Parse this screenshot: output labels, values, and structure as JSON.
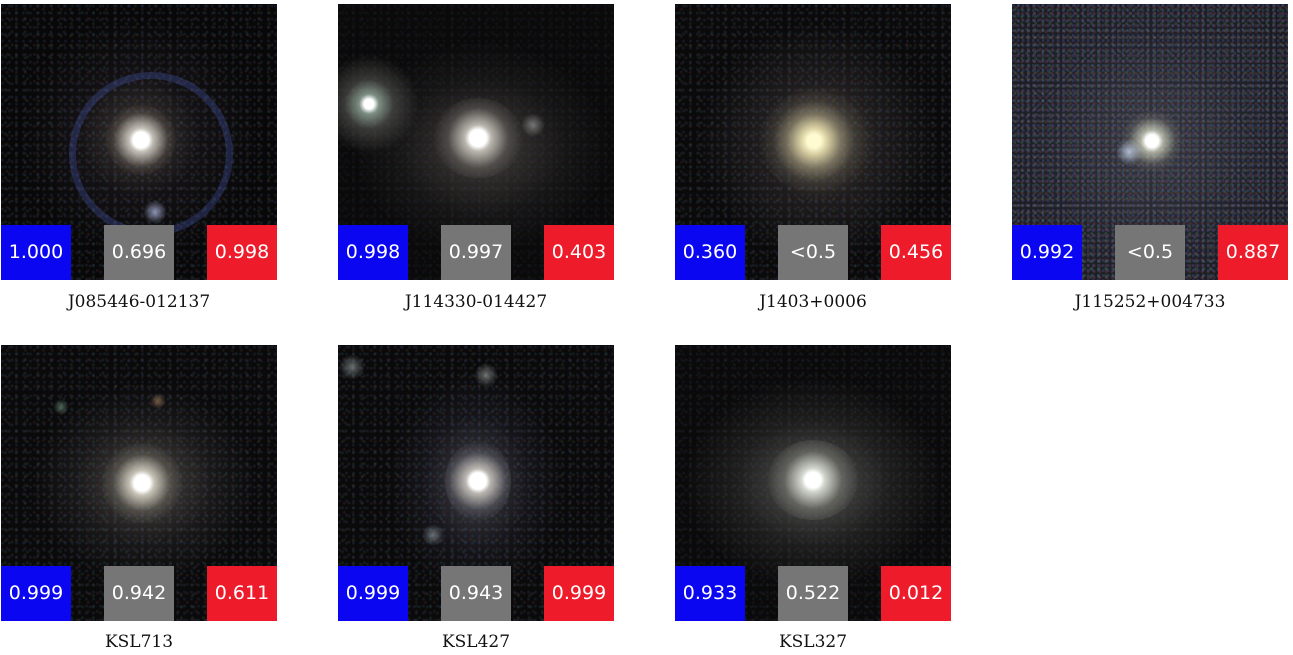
{
  "panels": [
    {
      "name": "J085446-012137",
      "scores": [
        "1.000",
        "0.696",
        "0.998"
      ]
    },
    {
      "name": "J114330-014427",
      "scores": [
        "0.998",
        "0.997",
        "0.403"
      ]
    },
    {
      "name": "J1403+0006",
      "scores": [
        "0.360",
        "<0.5",
        "0.456"
      ]
    },
    {
      "name": "J115252+004733",
      "scores": [
        "0.992",
        "<0.5",
        "0.887"
      ]
    },
    {
      "name": "KSL713",
      "scores": [
        "0.999",
        "0.942",
        "0.611"
      ]
    },
    {
      "name": "KSL427",
      "scores": [
        "0.999",
        "0.943",
        "0.999"
      ]
    },
    {
      "name": "KSL327",
      "scores": [
        "0.933",
        "0.522",
        "0.012"
      ]
    }
  ],
  "colors": {
    "blue_badge": "#0b06f2",
    "gray_badge": "#767676",
    "red_badge": "#ee1b2b"
  }
}
